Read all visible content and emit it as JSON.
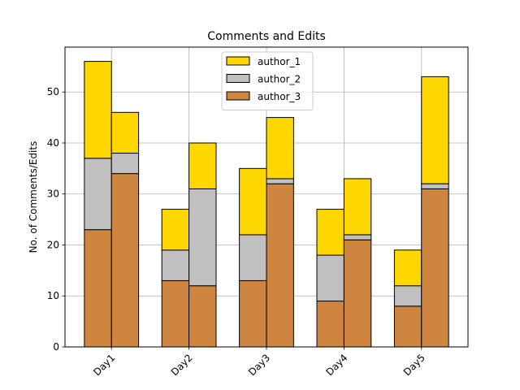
{
  "chart_data": {
    "type": "bar",
    "stacked": true,
    "grouped": true,
    "title": "Comments and Edits",
    "xlabel": "",
    "ylabel": "No. of Comments/Edits",
    "categories": [
      "Day1",
      "Day2",
      "Day3",
      "Day4",
      "Day5"
    ],
    "bars_per_category": 2,
    "ylim": [
      0,
      58.8
    ],
    "yticks": [
      0,
      10,
      20,
      30,
      40,
      50
    ],
    "grid": true,
    "legend_position": "top-center",
    "series": [
      {
        "name": "author_3",
        "color": "#cd853f",
        "values": [
          [
            23,
            34
          ],
          [
            13,
            12
          ],
          [
            13,
            32
          ],
          [
            9,
            21
          ],
          [
            8,
            31
          ]
        ]
      },
      {
        "name": "author_2",
        "color": "#c0c0c0",
        "values": [
          [
            14,
            4
          ],
          [
            6,
            19
          ],
          [
            9,
            1
          ],
          [
            9,
            1
          ],
          [
            4,
            1
          ]
        ]
      },
      {
        "name": "author_1",
        "color": "#ffd700",
        "values": [
          [
            19,
            8
          ],
          [
            8,
            9
          ],
          [
            13,
            12
          ],
          [
            9,
            11
          ],
          [
            7,
            21
          ]
        ]
      }
    ],
    "legend_order": [
      "author_1",
      "author_2",
      "author_3"
    ]
  }
}
